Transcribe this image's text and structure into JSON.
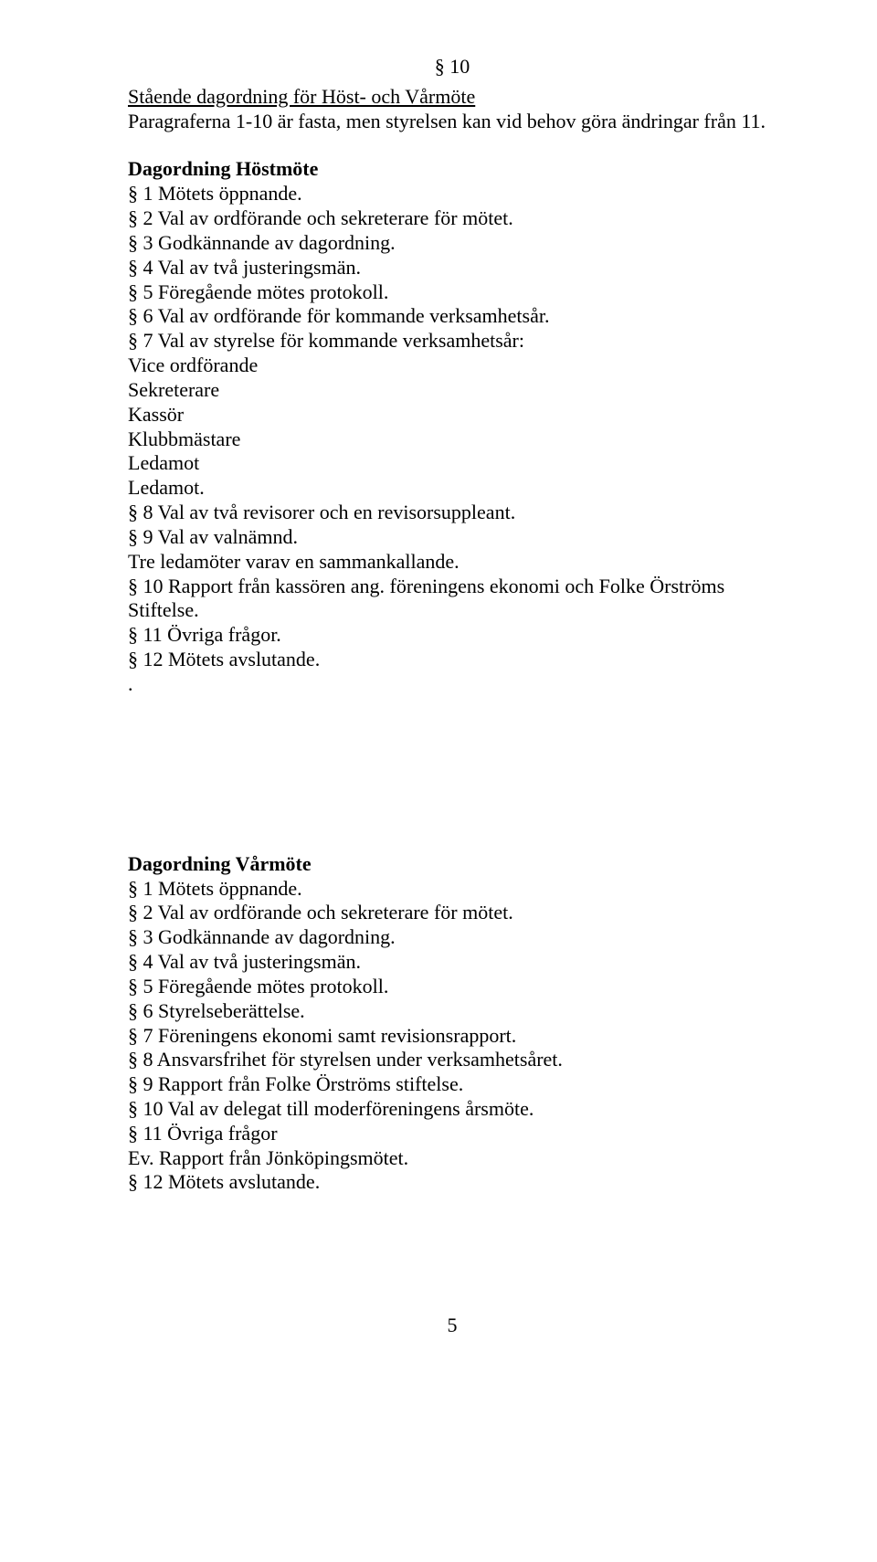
{
  "section_number": "§ 10",
  "intro": {
    "title": "Stående dagordning för Höst- och Vårmöte",
    "subtitle": "Paragraferna 1-10 är fasta, men styrelsen kan vid behov göra ändringar från 11."
  },
  "hostmote": {
    "heading": "Dagordning Höstmöte",
    "items": [
      "§ 1 Mötets öppnande.",
      "§ 2 Val av ordförande och sekreterare för mötet.",
      "§ 3 Godkännande av dagordning.",
      "§ 4 Val av två justeringsmän.",
      "§ 5 Föregående mötes protokoll.",
      "§ 6 Val av ordförande för kommande verksamhetsår.",
      "§ 7 Val av styrelse för kommande verksamhetsår:",
      "Vice ordförande",
      "Sekreterare",
      "Kassör",
      "Klubbmästare",
      "Ledamot",
      "Ledamot.",
      "§ 8 Val av två revisorer och en revisorsuppleant.",
      "§ 9 Val av valnämnd.",
      "Tre ledamöter varav en sammankallande.",
      "§ 10 Rapport från kassören ang. föreningens ekonomi och Folke Örströms Stiftelse.",
      "§ 11 Övriga frågor.",
      "§ 12 Mötets avslutande.",
      "."
    ]
  },
  "varmote": {
    "heading": "Dagordning Vårmöte",
    "items": [
      "§ 1 Mötets öppnande.",
      "§ 2 Val av ordförande och sekreterare för mötet.",
      "§ 3 Godkännande av dagordning.",
      "§ 4 Val av två justeringsmän.",
      "§ 5 Föregående mötes protokoll.",
      "§ 6 Styrelseberättelse.",
      "§ 7 Föreningens ekonomi samt revisionsrapport.",
      "§ 8 Ansvarsfrihet för styrelsen under verksamhetsåret.",
      "§ 9 Rapport från Folke Örströms stiftelse.",
      "§ 10 Val av delegat till moderföreningens årsmöte.",
      "§ 11 Övriga frågor",
      "Ev. Rapport från Jönköpingsmötet.",
      "§ 12 Mötets avslutande."
    ]
  },
  "page_number": "5",
  "colors": {
    "text": "#000000",
    "background": "#ffffff"
  },
  "typography": {
    "font_family": "Times New Roman",
    "body_fontsize_pt": 16
  }
}
